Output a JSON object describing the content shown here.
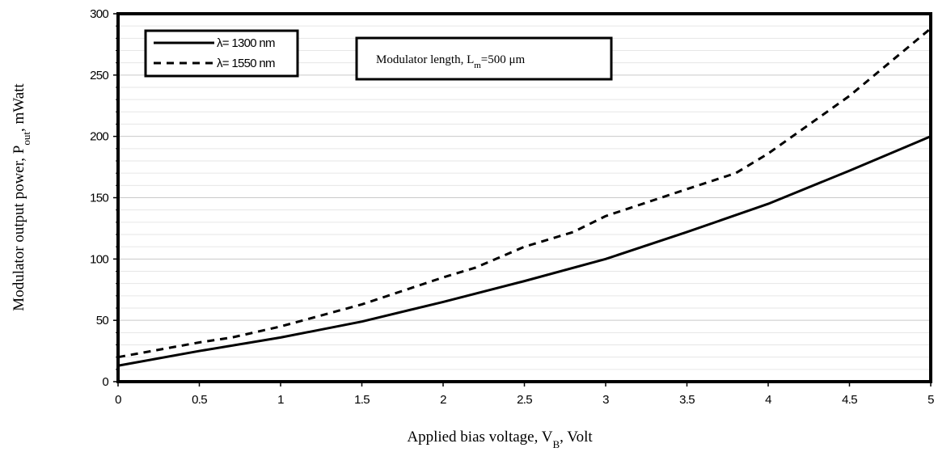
{
  "chart_data": {
    "type": "line",
    "xlabel": {
      "main": "Applied bias voltage, V",
      "sub": "B",
      "tail": ", Volt"
    },
    "ylabel": {
      "main": "Modulator output power, P",
      "sub": "out",
      "tail": ", mWatt"
    },
    "xlim": [
      0,
      5
    ],
    "ylim": [
      0,
      300
    ],
    "x_ticks": [
      "0",
      "0.5",
      "1",
      "1.5",
      "2",
      "2.5",
      "3",
      "3.5",
      "4",
      "4.5",
      "5"
    ],
    "y_ticks": [
      "0",
      "50",
      "100",
      "150",
      "200",
      "250",
      "300"
    ],
    "grid": true,
    "legend_position": "top-left",
    "series": [
      {
        "name": "λ= 1300 nm",
        "style": "solid",
        "color": "#000000",
        "x": [
          0,
          0.5,
          1,
          1.5,
          2,
          2.5,
          3,
          3.5,
          4,
          4.5,
          5
        ],
        "y": [
          13,
          25,
          36,
          49,
          65,
          82,
          100,
          122,
          145,
          172,
          200
        ]
      },
      {
        "name": "λ= 1550 nm",
        "style": "dashed",
        "color": "#000000",
        "x": [
          0,
          0.5,
          0.7,
          1,
          1.5,
          2,
          2.2,
          2.5,
          2.8,
          3,
          3.5,
          3.8,
          4,
          4.5,
          5
        ],
        "y": [
          20,
          32,
          36,
          45,
          63,
          85,
          93,
          110,
          122,
          135,
          157,
          170,
          186,
          233,
          288
        ]
      }
    ],
    "annotation": {
      "main": "Modulator length, L",
      "sub": "m",
      "tail": "=500 μm"
    }
  }
}
